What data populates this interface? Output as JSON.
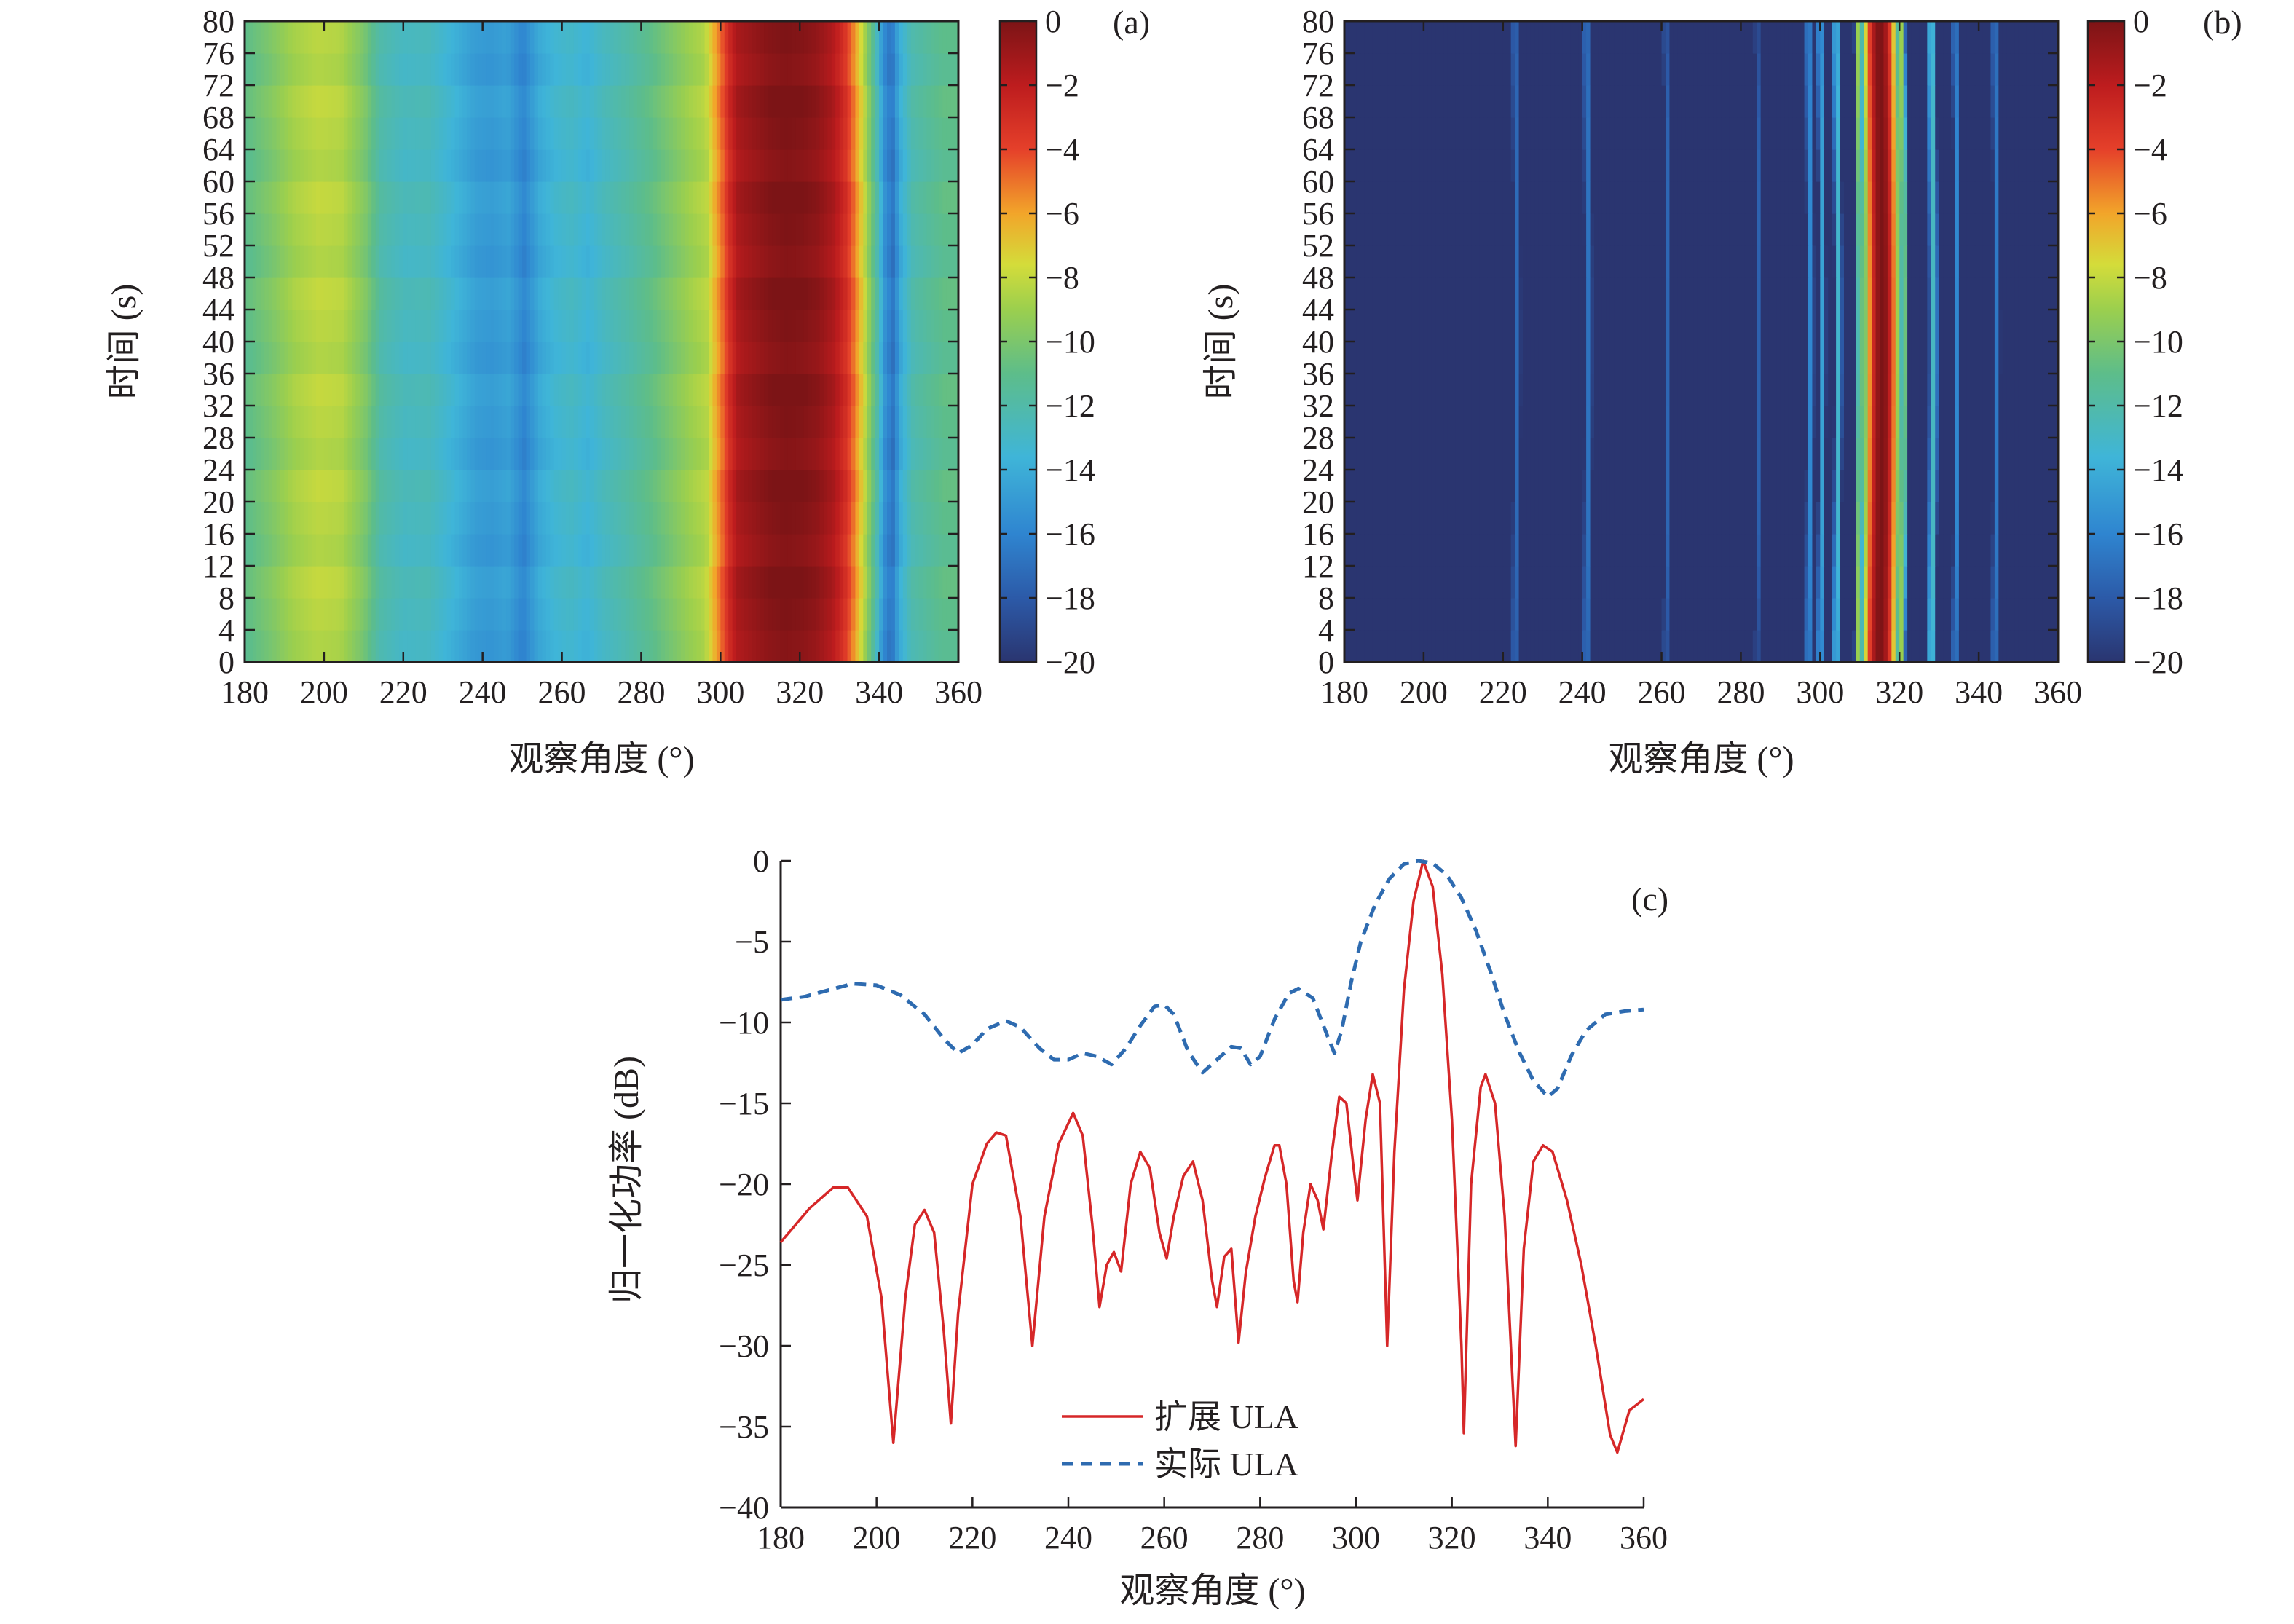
{
  "chart_data": [
    {
      "panel": "(a)",
      "type": "heatmap",
      "xlabel": "观察角度 (°)",
      "ylabel": "时间 (s)",
      "xlim": [
        180,
        360
      ],
      "ylim": [
        0,
        80
      ],
      "xticks": [
        "180",
        "200",
        "220",
        "240",
        "260",
        "280",
        "300",
        "320",
        "340",
        "360"
      ],
      "yticks": [
        "0",
        "4",
        "8",
        "12",
        "16",
        "20",
        "24",
        "28",
        "32",
        "36",
        "40",
        "44",
        "48",
        "52",
        "56",
        "60",
        "64",
        "68",
        "72",
        "76",
        "80"
      ],
      "colorbar": {
        "min": -20,
        "max": 0,
        "ticks": [
          "0",
          "−2",
          "−4",
          "−6",
          "−8",
          "−10",
          "−12",
          "−14",
          "−16",
          "−18",
          "−20"
        ]
      },
      "profile_db": [
        [
          180,
          -11
        ],
        [
          186,
          -10
        ],
        [
          192,
          -8.8
        ],
        [
          198,
          -8.2
        ],
        [
          204,
          -8.4
        ],
        [
          210,
          -10
        ],
        [
          214,
          -12
        ],
        [
          220,
          -12.8
        ],
        [
          226,
          -12.6
        ],
        [
          232,
          -13.6
        ],
        [
          238,
          -14.8
        ],
        [
          242,
          -15
        ],
        [
          246,
          -14.6
        ],
        [
          250,
          -16
        ],
        [
          254,
          -14.2
        ],
        [
          258,
          -13.4
        ],
        [
          262,
          -13
        ],
        [
          266,
          -13.6
        ],
        [
          270,
          -12.8
        ],
        [
          276,
          -12
        ],
        [
          282,
          -11
        ],
        [
          288,
          -9.8
        ],
        [
          292,
          -9
        ],
        [
          296,
          -8.4
        ],
        [
          298,
          -6.5
        ],
        [
          300,
          -4.8
        ],
        [
          302,
          -2.8
        ],
        [
          304,
          -1.4
        ],
        [
          308,
          -0.8
        ],
        [
          312,
          -0.3
        ],
        [
          316,
          -0.05
        ],
        [
          320,
          -0.2
        ],
        [
          324,
          -0.6
        ],
        [
          328,
          -1.5
        ],
        [
          331,
          -3
        ],
        [
          333,
          -4.8
        ],
        [
          335,
          -7
        ],
        [
          337,
          -9.5
        ],
        [
          339,
          -12
        ],
        [
          341,
          -15.5
        ],
        [
          343,
          -16.8
        ],
        [
          345,
          -14
        ],
        [
          348,
          -12.2
        ],
        [
          352,
          -11.6
        ],
        [
          356,
          -11
        ],
        [
          360,
          -11
        ]
      ]
    },
    {
      "panel": "(b)",
      "type": "heatmap",
      "xlabel": "观察角度 (°)",
      "ylabel": "时间 (s)",
      "xlim": [
        180,
        360
      ],
      "ylim": [
        0,
        80
      ],
      "xticks": [
        "180",
        "200",
        "220",
        "240",
        "260",
        "280",
        "300",
        "320",
        "340",
        "360"
      ],
      "yticks": [
        "0",
        "4",
        "8",
        "12",
        "16",
        "20",
        "24",
        "28",
        "32",
        "36",
        "40",
        "44",
        "48",
        "52",
        "56",
        "60",
        "64",
        "68",
        "72",
        "76",
        "80"
      ],
      "colorbar": {
        "min": -20,
        "max": 0,
        "ticks": [
          "0",
          "−2",
          "−4",
          "−6",
          "−8",
          "−10",
          "−12",
          "−14",
          "−16",
          "−18",
          "−20"
        ]
      },
      "peaks": [
        {
          "x": 223,
          "db": -17.2,
          "w": 1.4
        },
        {
          "x": 241,
          "db": -16.8,
          "w": 1.4
        },
        {
          "x": 261,
          "db": -17.4,
          "w": 1.1
        },
        {
          "x": 284,
          "db": -17.6,
          "w": 1.0
        },
        {
          "x": 297,
          "db": -15.8,
          "w": 1.2
        },
        {
          "x": 300,
          "db": -14.5,
          "w": 1.0
        },
        {
          "x": 304,
          "db": -13.2,
          "w": 1.0
        },
        {
          "x": 309.5,
          "db": -9,
          "w": 0.8
        },
        {
          "x": 315,
          "db": 0,
          "w": 3.2
        },
        {
          "x": 320.5,
          "db": -9,
          "w": 0.8
        },
        {
          "x": 328,
          "db": -12.8,
          "w": 1.1
        },
        {
          "x": 334,
          "db": -15.8,
          "w": 1.0
        },
        {
          "x": 344,
          "db": -16.5,
          "w": 1.2
        }
      ]
    },
    {
      "panel": "(c)",
      "type": "line",
      "xlabel": "观察角度 (°)",
      "ylabel": "归一化功率 (dB)",
      "xlim": [
        180,
        360
      ],
      "ylim": [
        -40,
        0
      ],
      "xticks": [
        "180",
        "200",
        "220",
        "240",
        "260",
        "280",
        "300",
        "320",
        "340",
        "360"
      ],
      "yticks": [
        "0",
        "−5",
        "−10",
        "−15",
        "−20",
        "−25",
        "−30",
        "−35",
        "−40"
      ],
      "legend_position": "bottom-center",
      "series": [
        {
          "name": "扩展 ULA",
          "color": "#d62728",
          "style": "solid",
          "points": [
            [
              180,
              -23.6
            ],
            [
              186,
              -21.5
            ],
            [
              191,
              -20.2
            ],
            [
              194,
              -20.2
            ],
            [
              198,
              -22
            ],
            [
              201,
              -27
            ],
            [
              203.5,
              -36
            ],
            [
              206,
              -27
            ],
            [
              208,
              -22.5
            ],
            [
              210,
              -21.6
            ],
            [
              212,
              -23
            ],
            [
              214,
              -29
            ],
            [
              215.5,
              -34.8
            ],
            [
              217,
              -28
            ],
            [
              220,
              -20
            ],
            [
              223,
              -17.5
            ],
            [
              225,
              -16.8
            ],
            [
              227,
              -17
            ],
            [
              230,
              -22
            ],
            [
              232.5,
              -30
            ],
            [
              235,
              -22
            ],
            [
              238,
              -17.5
            ],
            [
              241,
              -15.6
            ],
            [
              243,
              -17
            ],
            [
              245,
              -22.5
            ],
            [
              246.5,
              -27.6
            ],
            [
              248,
              -25
            ],
            [
              249.5,
              -24.2
            ],
            [
              251,
              -25.4
            ],
            [
              253,
              -20
            ],
            [
              255,
              -18
            ],
            [
              257,
              -19
            ],
            [
              259,
              -23
            ],
            [
              260.5,
              -24.6
            ],
            [
              262,
              -22
            ],
            [
              264,
              -19.5
            ],
            [
              266,
              -18.6
            ],
            [
              268,
              -21
            ],
            [
              270,
              -26
            ],
            [
              271,
              -27.6
            ],
            [
              272.5,
              -24.5
            ],
            [
              274,
              -24
            ],
            [
              275.5,
              -29.8
            ],
            [
              277,
              -25.5
            ],
            [
              279,
              -22
            ],
            [
              281,
              -19.6
            ],
            [
              283,
              -17.6
            ],
            [
              284,
              -17.6
            ],
            [
              285.5,
              -20
            ],
            [
              287,
              -26
            ],
            [
              287.8,
              -27.3
            ],
            [
              289,
              -23
            ],
            [
              290.5,
              -20
            ],
            [
              292,
              -21
            ],
            [
              293.2,
              -22.8
            ],
            [
              295,
              -18
            ],
            [
              296.5,
              -14.6
            ],
            [
              298,
              -15
            ],
            [
              299.5,
              -19
            ],
            [
              300.3,
              -21
            ],
            [
              302,
              -16
            ],
            [
              303.5,
              -13.2
            ],
            [
              305,
              -15
            ],
            [
              306.5,
              -30
            ],
            [
              308,
              -18
            ],
            [
              310,
              -8
            ],
            [
              312,
              -2.5
            ],
            [
              314,
              0
            ],
            [
              316,
              -1.6
            ],
            [
              318,
              -7
            ],
            [
              320,
              -16
            ],
            [
              322,
              -30
            ],
            [
              322.5,
              -35.4
            ],
            [
              324,
              -20
            ],
            [
              326,
              -14
            ],
            [
              327,
              -13.2
            ],
            [
              329,
              -15
            ],
            [
              331,
              -22
            ],
            [
              333.3,
              -36.2
            ],
            [
              335,
              -24
            ],
            [
              337,
              -18.6
            ],
            [
              339,
              -17.6
            ],
            [
              341,
              -18
            ],
            [
              344,
              -21
            ],
            [
              347,
              -25
            ],
            [
              350,
              -30
            ],
            [
              353,
              -35.5
            ],
            [
              354.5,
              -36.6
            ],
            [
              357,
              -34
            ],
            [
              360,
              -33.3
            ]
          ]
        },
        {
          "name": "实际 ULA",
          "color": "#2e6bb0",
          "style": "dashed",
          "points": [
            [
              180,
              -8.6
            ],
            [
              185,
              -8.4
            ],
            [
              190,
              -8
            ],
            [
              195,
              -7.6
            ],
            [
              200,
              -7.7
            ],
            [
              205,
              -8.3
            ],
            [
              210,
              -9.5
            ],
            [
              214,
              -11
            ],
            [
              217,
              -11.9
            ],
            [
              220,
              -11.4
            ],
            [
              223,
              -10.4
            ],
            [
              227,
              -9.9
            ],
            [
              230,
              -10.3
            ],
            [
              234,
              -11.6
            ],
            [
              237,
              -12.3
            ],
            [
              240,
              -12.3
            ],
            [
              243,
              -11.9
            ],
            [
              246,
              -12.1
            ],
            [
              249,
              -12.6
            ],
            [
              252,
              -11.6
            ],
            [
              255,
              -10.2
            ],
            [
              258,
              -9
            ],
            [
              260,
              -8.9
            ],
            [
              262,
              -9.5
            ],
            [
              265,
              -11.8
            ],
            [
              268,
              -13.1
            ],
            [
              271,
              -12.3
            ],
            [
              274,
              -11.5
            ],
            [
              276,
              -11.6
            ],
            [
              278,
              -12.6
            ],
            [
              280,
              -12.1
            ],
            [
              283,
              -9.8
            ],
            [
              286,
              -8.2
            ],
            [
              288,
              -7.9
            ],
            [
              291,
              -8.5
            ],
            [
              294,
              -10.8
            ],
            [
              295.5,
              -11.9
            ],
            [
              297,
              -10.5
            ],
            [
              299,
              -7.5
            ],
            [
              301,
              -5
            ],
            [
              304,
              -2.7
            ],
            [
              307,
              -1.1
            ],
            [
              310,
              -0.2
            ],
            [
              313,
              0
            ],
            [
              316,
              -0.15
            ],
            [
              319,
              -0.9
            ],
            [
              322,
              -2.3
            ],
            [
              325,
              -4.3
            ],
            [
              328,
              -6.8
            ],
            [
              331,
              -9.5
            ],
            [
              334,
              -11.8
            ],
            [
              337,
              -13.6
            ],
            [
              340,
              -14.6
            ],
            [
              342,
              -14.1
            ],
            [
              345,
              -12
            ],
            [
              348,
              -10.5
            ],
            [
              352,
              -9.5
            ],
            [
              356,
              -9.3
            ],
            [
              360,
              -9.2
            ]
          ]
        }
      ]
    }
  ]
}
